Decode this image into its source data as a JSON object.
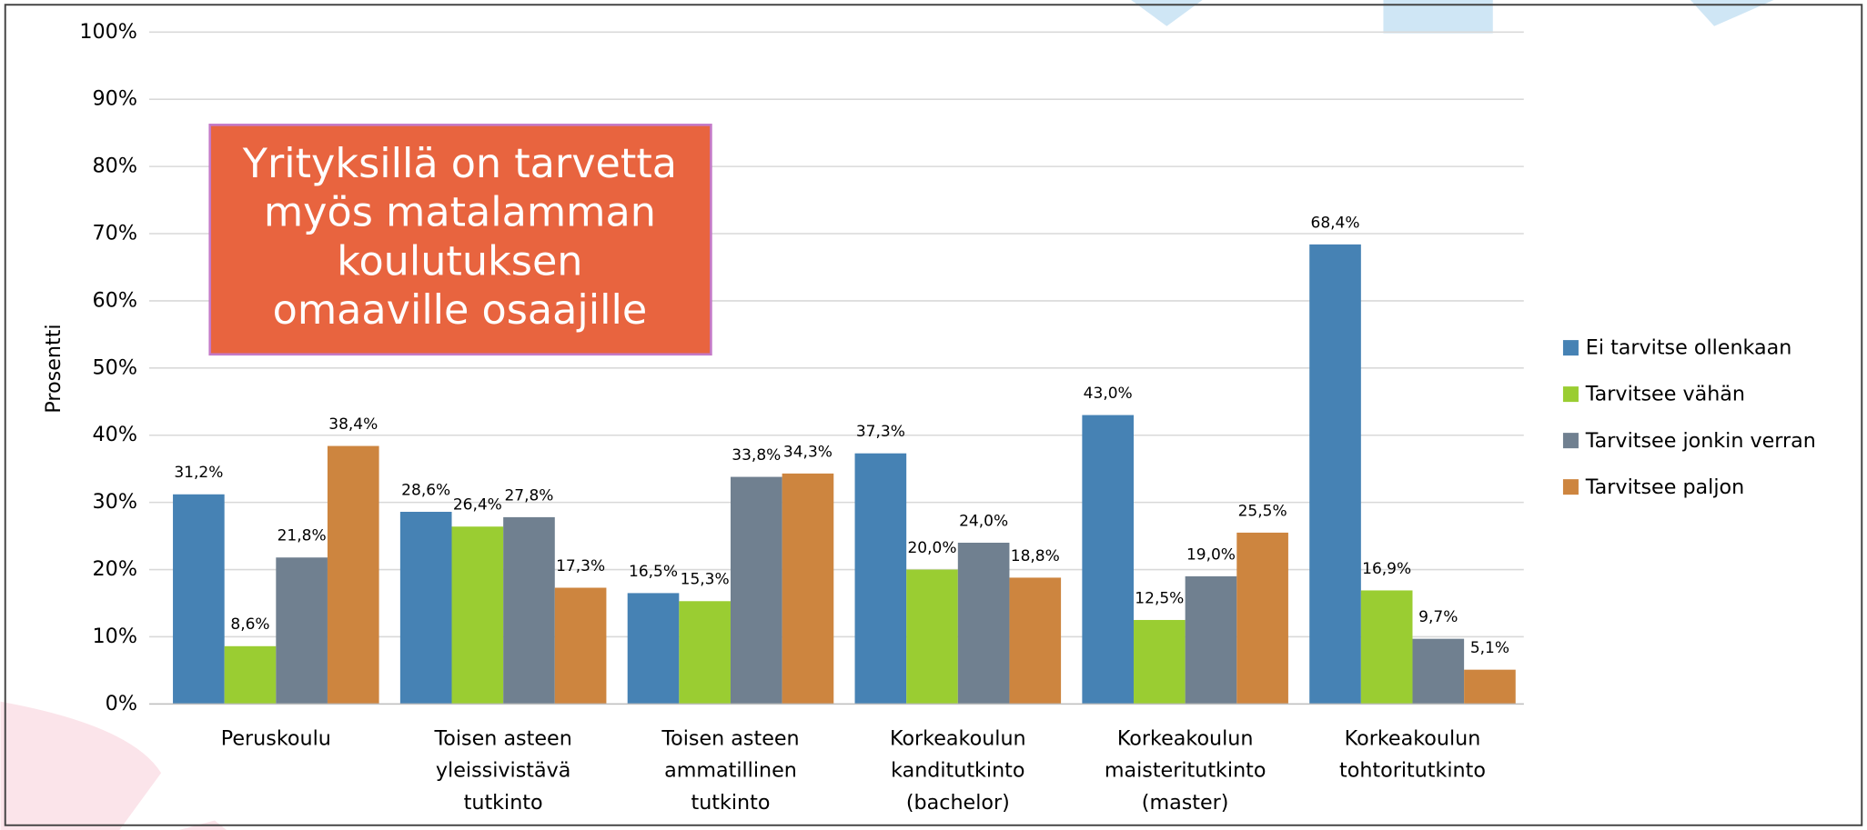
{
  "chart_data": {
    "type": "bar",
    "y_label": "Prosentti",
    "annotation": "Yrityksillä on tarvetta\nmyös matalamman\nkoulutuksen\nomaaville osaajille",
    "categories": [
      "Peruskoulu",
      "Toisen asteen\nyleissivistävä\ntutkinto",
      "Toisen asteen\nammatillinen\ntutkinto",
      "Korkeakoulun\nkanditutkinto\n(bachelor)",
      "Korkeakoulun\nmaisteritutkinto\n(master)",
      "Korkeakoulun\ntohtoritutkinto"
    ],
    "series": [
      {
        "name": "Ei tarvitse ollenkaan",
        "color": "#4682b4",
        "values": [
          31.2,
          28.6,
          16.5,
          37.3,
          43.0,
          68.4
        ],
        "value_labels": [
          "31,2%",
          "28,6%",
          "16,5%",
          "37,3%",
          "43,0%",
          "68,4%"
        ]
      },
      {
        "name": "Tarvitsee vähän",
        "color": "#9acd32",
        "values": [
          8.6,
          26.4,
          15.3,
          20.0,
          12.5,
          16.9
        ],
        "value_labels": [
          "8,6%",
          "26,4%",
          "15,3%",
          "20,0%",
          "12,5%",
          "16,9%"
        ]
      },
      {
        "name": "Tarvitsee jonkin verran",
        "color": "#708090",
        "values": [
          21.8,
          27.8,
          33.8,
          24.0,
          19.0,
          9.7
        ],
        "value_labels": [
          "21,8%",
          "27,8%",
          "33,8%",
          "24,0%",
          "19,0%",
          "9,7%"
        ]
      },
      {
        "name": "Tarvitsee paljon",
        "color": "#cd853f",
        "values": [
          38.4,
          17.3,
          34.3,
          18.8,
          25.5,
          5.1
        ],
        "value_labels": [
          "38,4%",
          "17,3%",
          "34,3%",
          "18,8%",
          "25,5%",
          "5,1%"
        ]
      }
    ],
    "ylim": [
      0,
      100
    ],
    "yticks": [
      {
        "value": 0,
        "label": "0%"
      },
      {
        "value": 10,
        "label": "10%"
      },
      {
        "value": 20,
        "label": "20%"
      },
      {
        "value": 30,
        "label": "30%"
      },
      {
        "value": 40,
        "label": "40%"
      },
      {
        "value": 50,
        "label": "50%"
      },
      {
        "value": 60,
        "label": "60%"
      },
      {
        "value": 70,
        "label": "70%"
      },
      {
        "value": 80,
        "label": "80%"
      },
      {
        "value": 90,
        "label": "90%"
      },
      {
        "value": 100,
        "label": "100%"
      }
    ],
    "grid": true,
    "legend": "right"
  }
}
